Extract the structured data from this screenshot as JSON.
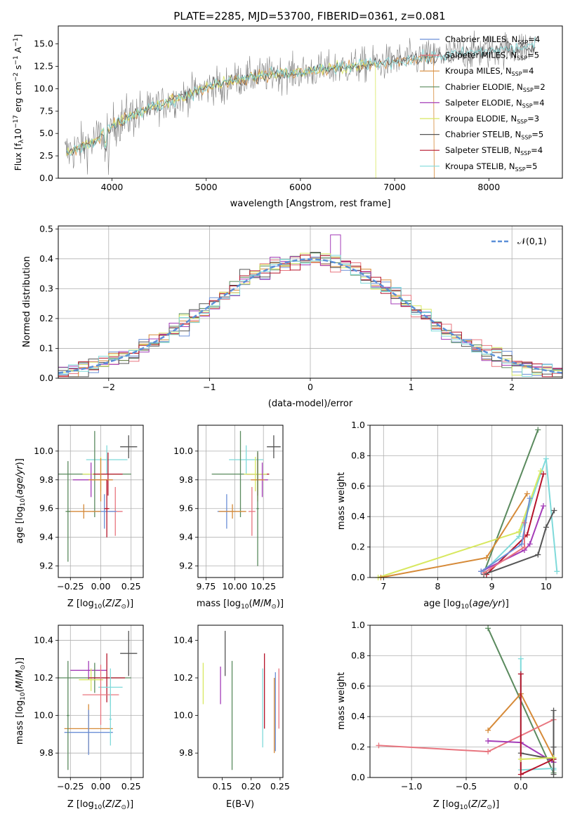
{
  "figure_title": "PLATE=2285, MJD=53700, FIBERID=0361, z=0.081",
  "colors": {
    "Chabrier MILES": "#6b8fd6",
    "Salpeter MILES": "#e8757f",
    "Kroupa MILES": "#d68a38",
    "Chabrier ELODIE": "#5a8a5e",
    "Salpeter ELODIE": "#a43db8",
    "Kroupa ELODIE": "#d8e860",
    "Chabrier STELIB": "#555555",
    "Salpeter STELIB": "#b5142a",
    "Kroupa STELIB": "#7fdada",
    "normal": "#5b8fd8",
    "pink": "#e079b8"
  },
  "chart_data": [
    {
      "type": "line",
      "id": "spectrum",
      "title": "PLATE=2285, MJD=53700, FIBERID=0361, z=0.081",
      "xlabel": "wavelength [Angstrom, rest frame]",
      "ylabel": "Flux [f_λ 10^-17 erg cm^-2 s^-1 A^-1]",
      "xlim": [
        3430,
        8780
      ],
      "ylim": [
        0,
        17
      ],
      "xticks": [
        4000,
        5000,
        6000,
        7000,
        8000
      ],
      "yticks": [
        0.0,
        2.5,
        5.0,
        7.5,
        10.0,
        12.5,
        15.0
      ],
      "grid": false,
      "legend": {
        "position": "right",
        "entries": [
          "Chabrier MILES, N_SSP=4",
          "Salpeter MILES, N_SSP=5",
          "Kroupa MILES, N_SSP=4",
          "Chabrier ELODIE, N_SSP=2",
          "Salpeter ELODIE, N_SSP=4",
          "Kroupa ELODIE, N_SSP=3",
          "Chabrier STELIB, N_SSP=5",
          "Salpeter STELIB, N_SSP=4",
          "Kroupa STELIB, N_SSP=5"
        ]
      },
      "continuum": [
        [
          3500,
          2.8
        ],
        [
          3800,
          4.0
        ],
        [
          3950,
          5.5
        ],
        [
          4100,
          6.5
        ],
        [
          4400,
          7.8
        ],
        [
          4800,
          9.3
        ],
        [
          5200,
          10.8
        ],
        [
          5600,
          11.5
        ],
        [
          6000,
          11.8
        ],
        [
          6400,
          12.3
        ],
        [
          6800,
          12.8
        ],
        [
          7200,
          13.3
        ],
        [
          7600,
          13.8
        ],
        [
          8000,
          14.2
        ],
        [
          8500,
          14.8
        ]
      ]
    },
    {
      "type": "histogram",
      "id": "residuals",
      "xlabel": "(data-model)/error",
      "ylabel": "Normed distribution",
      "xlim": [
        -2.5,
        2.5
      ],
      "ylim": [
        0,
        0.51
      ],
      "xticks": [
        -2,
        -1,
        0,
        1,
        2
      ],
      "yticks": [
        0.0,
        0.1,
        0.2,
        0.3,
        0.4,
        0.5
      ],
      "grid": true,
      "bin_width": 0.1,
      "legend": {
        "position": "top-right",
        "entries": [
          "𝒩(0,1)"
        ]
      },
      "peak_bin": {
        "x": 0.25,
        "value": 0.48
      }
    },
    {
      "type": "errorbar",
      "id": "age_vs_Z",
      "xlabel": "Z [log10(Z/Z⊙)]",
      "ylabel": "age  [log10(age/yr)]",
      "xlim": [
        -0.35,
        0.35
      ],
      "ylim": [
        9.12,
        10.18
      ],
      "xticks": [
        -0.25,
        0.0,
        0.25
      ],
      "yticks": [
        9.2,
        9.4,
        9.6,
        9.8,
        10.0
      ],
      "grid": true,
      "points": [
        {
          "model": "Chabrier STELIB",
          "x": 0.23,
          "y": 10.03,
          "xerr": 0.07,
          "yerr": 0.08
        },
        {
          "model": "Kroupa STELIB",
          "x": 0.05,
          "y": 9.94,
          "xerr": 0.17,
          "yerr": 0.1
        },
        {
          "model": "Chabrier ELODIE",
          "x": -0.05,
          "y": 9.84,
          "xerr": 0.3,
          "yerr": 0.3
        },
        {
          "model": "Kroupa ELODIE",
          "x": 0.0,
          "y": 9.84,
          "xerr": 0.15,
          "yerr": 0.12
        },
        {
          "model": "Salpeter STELIB",
          "x": 0.06,
          "y": 9.84,
          "xerr": 0.12,
          "yerr": 0.15
        },
        {
          "model": "Salpeter ELODIE",
          "x": -0.08,
          "y": 9.8,
          "xerr": 0.15,
          "yerr": 0.12
        },
        {
          "model": "Kroupa MILES",
          "x": 0.0,
          "y": 9.8,
          "xerr": 0.1,
          "yerr": 0.15
        },
        {
          "model": "Salpeter MILES",
          "x": 0.12,
          "y": 9.58,
          "xerr": 0.06,
          "yerr": 0.17
        },
        {
          "model": "Chabrier MILES",
          "x": 0.03,
          "y": 9.58,
          "xerr": 0.1,
          "yerr": 0.12
        },
        {
          "model": "Kroupa MILES",
          "x": -0.14,
          "y": 9.58,
          "xerr": 0.14,
          "yerr": 0.05
        },
        {
          "model": "Chabrier ELODIE",
          "x": -0.27,
          "y": 9.58,
          "xerr": 0.02,
          "yerr": 0.35
        },
        {
          "model": "Salpeter STELIB",
          "x": 0.05,
          "y": 9.6,
          "xerr": 0.02,
          "yerr": 0.2
        }
      ]
    },
    {
      "type": "errorbar",
      "id": "age_vs_mass",
      "xlabel": "mass [log10(M/M⊙)]",
      "ylabel": "",
      "xlim": [
        9.68,
        10.42
      ],
      "ylim": [
        9.12,
        10.18
      ],
      "xticks": [
        9.75,
        10.0,
        10.25
      ],
      "tick_labels": [
        "9.75",
        "10.00",
        "10.25"
      ],
      "yticks": [
        9.2,
        9.4,
        9.6,
        9.8,
        10.0
      ],
      "grid": true,
      "points": [
        {
          "model": "Chabrier STELIB",
          "x": 10.34,
          "y": 10.03,
          "xerr": 0.06,
          "yerr": 0.08
        },
        {
          "model": "Kroupa STELIB",
          "x": 10.1,
          "y": 9.94,
          "xerr": 0.15,
          "yerr": 0.1
        },
        {
          "model": "Chabrier ELODIE",
          "x": 10.05,
          "y": 9.84,
          "xerr": 0.25,
          "yerr": 0.3
        },
        {
          "model": "Salpeter STELIB",
          "x": 10.2,
          "y": 9.84,
          "xerr": 0.1,
          "yerr": 0.15
        },
        {
          "model": "Kroupa ELODIE",
          "x": 10.18,
          "y": 9.84,
          "xerr": 0.1,
          "yerr": 0.12
        },
        {
          "model": "Salpeter ELODIE",
          "x": 10.24,
          "y": 9.8,
          "xerr": 0.05,
          "yerr": 0.12
        },
        {
          "model": "Kroupa MILES",
          "x": 10.2,
          "y": 9.8,
          "xerr": 0.06,
          "yerr": 0.15
        },
        {
          "model": "Salpeter MILES",
          "x": 10.15,
          "y": 9.58,
          "xerr": 0.03,
          "yerr": 0.17
        },
        {
          "model": "Chabrier MILES",
          "x": 9.93,
          "y": 9.58,
          "xerr": 0.08,
          "yerr": 0.12
        },
        {
          "model": "Kroupa MILES",
          "x": 9.98,
          "y": 9.58,
          "xerr": 0.12,
          "yerr": 0.05
        },
        {
          "model": "Chabrier ELODIE",
          "x": 10.2,
          "y": 9.6,
          "xerr": 0.01,
          "yerr": 0.4
        }
      ]
    },
    {
      "type": "line",
      "id": "weight_vs_age",
      "xlabel": "age  [log10(age/yr)]",
      "ylabel": "mass weight",
      "xlim": [
        6.75,
        10.3
      ],
      "ylim": [
        0,
        1
      ],
      "xticks": [
        7,
        8,
        9,
        10
      ],
      "yticks": [
        0.0,
        0.2,
        0.4,
        0.6,
        0.8,
        1.0
      ],
      "grid": true,
      "series": [
        {
          "model": "Chabrier ELODIE",
          "x": [
            8.85,
            9.85
          ],
          "y": [
            0.03,
            0.97
          ]
        },
        {
          "model": "Kroupa STELIB",
          "x": [
            8.85,
            9.5,
            10.0,
            10.2
          ],
          "y": [
            0.04,
            0.27,
            0.78,
            0.04
          ]
        },
        {
          "model": "Kroupa ELODIE",
          "x": [
            6.9,
            9.5,
            9.9
          ],
          "y": [
            0.0,
            0.3,
            0.7
          ]
        },
        {
          "model": "Salpeter STELIB",
          "x": [
            8.9,
            9.65,
            9.95
          ],
          "y": [
            0.02,
            0.28,
            0.68
          ]
        },
        {
          "model": "Salpeter ELODIE",
          "x": [
            8.8,
            9.6,
            9.7,
            9.95
          ],
          "y": [
            0.04,
            0.18,
            0.22,
            0.47
          ]
        },
        {
          "model": "Chabrier STELIB",
          "x": [
            8.85,
            9.85,
            10.0,
            10.15
          ],
          "y": [
            0.02,
            0.15,
            0.33,
            0.44
          ]
        },
        {
          "model": "Kroupa MILES",
          "x": [
            6.95,
            8.9,
            9.65
          ],
          "y": [
            0.0,
            0.13,
            0.55
          ]
        },
        {
          "model": "Salpeter MILES",
          "x": [
            8.85,
            9.6,
            9.6
          ],
          "y": [
            0.03,
            0.2,
            0.36
          ]
        },
        {
          "model": "Chabrier MILES",
          "x": [
            8.8,
            9.55,
            9.7
          ],
          "y": [
            0.04,
            0.22,
            0.52
          ]
        }
      ]
    },
    {
      "type": "errorbar",
      "id": "mass_vs_Z",
      "xlabel": "Z [log10(Z/Z⊙)]",
      "ylabel": "mass [log10(M/M⊙)]",
      "xlim": [
        -0.35,
        0.35
      ],
      "ylim": [
        9.67,
        10.48
      ],
      "xticks": [
        -0.25,
        0.0,
        0.25
      ],
      "yticks": [
        9.8,
        10.0,
        10.2,
        10.4
      ],
      "grid": true,
      "points": [
        {
          "model": "Chabrier STELIB",
          "x": 0.23,
          "y": 10.33,
          "xerr": 0.07,
          "yerr": 0.12
        },
        {
          "model": "Salpeter ELODIE",
          "x": -0.1,
          "y": 10.24,
          "xerr": 0.15,
          "yerr": 0.05
        },
        {
          "model": "Chabrier ELODIE",
          "x": -0.05,
          "y": 10.2,
          "xerr": 0.3,
          "yerr": 0.08
        },
        {
          "model": "Kroupa ELODIE",
          "x": -0.08,
          "y": 10.19,
          "xerr": 0.1,
          "yerr": 0.06
        },
        {
          "model": "Salpeter STELIB",
          "x": 0.05,
          "y": 10.2,
          "xerr": 0.15,
          "yerr": 0.13
        },
        {
          "model": "Kroupa STELIB",
          "x": 0.08,
          "y": 10.15,
          "xerr": 0.1,
          "yerr": 0.1
        },
        {
          "model": "Salpeter MILES",
          "x": 0.0,
          "y": 10.11,
          "xerr": 0.15,
          "yerr": 0.16
        },
        {
          "model": "Kroupa MILES",
          "x": -0.1,
          "y": 9.93,
          "xerr": 0.2,
          "yerr": 0.13
        },
        {
          "model": "Chabrier MILES",
          "x": -0.1,
          "y": 9.91,
          "xerr": 0.2,
          "yerr": 0.12
        },
        {
          "model": "Chabrier ELODIE",
          "x": -0.27,
          "y": 10.0,
          "xerr": 0.01,
          "yerr": 0.29
        },
        {
          "model": "Kroupa STELIB",
          "x": 0.08,
          "y": 9.98,
          "xerr": 0.01,
          "yerr": 0.14
        }
      ]
    },
    {
      "type": "errorbar",
      "id": "mass_vs_EBV",
      "xlabel": "E(B-V)",
      "ylabel": "",
      "xlim": [
        0.108,
        0.255
      ],
      "ylim": [
        9.67,
        10.48
      ],
      "xticks": [
        0.15,
        0.2,
        0.25
      ],
      "yticks": [
        9.8,
        10.0,
        10.2,
        10.4
      ],
      "grid": false,
      "points": [
        {
          "model": "Kroupa ELODIE",
          "x": 0.117,
          "y": 10.17,
          "xerr": 0.0,
          "yerr": 0.11
        },
        {
          "model": "Salpeter ELODIE",
          "x": 0.147,
          "y": 10.16,
          "xerr": 0.0,
          "yerr": 0.1
        },
        {
          "model": "Chabrier STELIB",
          "x": 0.155,
          "y": 10.33,
          "xerr": 0.0,
          "yerr": 0.12
        },
        {
          "model": "Chabrier ELODIE",
          "x": 0.167,
          "y": 10.0,
          "xerr": 0.0,
          "yerr": 0.29
        },
        {
          "model": "Kroupa STELIB",
          "x": 0.22,
          "y": 10.04,
          "xerr": 0.0,
          "yerr": 0.21
        },
        {
          "model": "Salpeter STELIB",
          "x": 0.223,
          "y": 10.13,
          "xerr": 0.0,
          "yerr": 0.2
        },
        {
          "model": "Kroupa MILES",
          "x": 0.24,
          "y": 10.0,
          "xerr": 0.0,
          "yerr": 0.2
        },
        {
          "model": "Chabrier MILES",
          "x": 0.242,
          "y": 10.02,
          "xerr": 0.0,
          "yerr": 0.21
        },
        {
          "model": "Salpeter MILES",
          "x": 0.248,
          "y": 10.09,
          "xerr": 0.0,
          "yerr": 0.16
        }
      ]
    },
    {
      "type": "line",
      "id": "weight_vs_Z",
      "xlabel": "Z [log10(Z/Z⊙)]",
      "ylabel": "mass weight",
      "xlim": [
        -1.38,
        0.38
      ],
      "ylim": [
        0,
        1
      ],
      "xticks": [
        -1.0,
        -0.5,
        0.0
      ],
      "yticks": [
        0.0,
        0.2,
        0.4,
        0.6,
        0.8,
        1.0
      ],
      "grid": true,
      "series": [
        {
          "model": "Chabrier ELODIE",
          "x": [
            -0.3,
            0.3
          ],
          "y": [
            0.98,
            0.03
          ]
        },
        {
          "model": "Kroupa STELIB",
          "x": [
            0.0,
            0.0,
            0.0,
            0.3,
            0.3
          ],
          "y": [
            0.78,
            0.55,
            0.05,
            0.06,
            0.05
          ]
        },
        {
          "model": "Kroupa MILES",
          "x": [
            -0.3,
            0.0,
            0.3
          ],
          "y": [
            0.31,
            0.55,
            0.13
          ]
        },
        {
          "model": "Salpeter MILES",
          "x": [
            -1.3,
            -0.3,
            0.3
          ],
          "y": [
            0.21,
            0.17,
            0.38
          ]
        },
        {
          "model": "Salpeter ELODIE",
          "x": [
            -0.3,
            0.0,
            0.3
          ],
          "y": [
            0.24,
            0.23,
            0.1
          ]
        },
        {
          "model": "Chabrier STELIB",
          "x": [
            0.0,
            0.3,
            0.3,
            0.3,
            0.3
          ],
          "y": [
            0.16,
            0.12,
            0.44,
            0.2,
            0.02
          ]
        },
        {
          "model": "Salpeter STELIB",
          "x": [
            0.0,
            0.0,
            0.3
          ],
          "y": [
            0.68,
            0.02,
            0.12
          ]
        },
        {
          "model": "Kroupa ELODIE",
          "x": [
            0.0,
            0.3
          ],
          "y": [
            0.12,
            0.13
          ]
        }
      ]
    }
  ]
}
